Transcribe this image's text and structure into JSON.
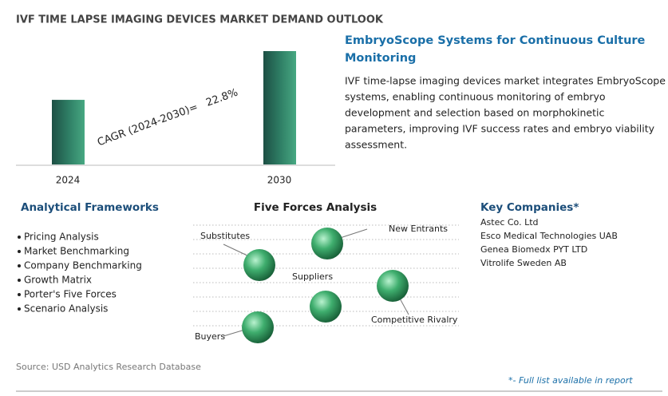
{
  "title": "IVF TIME LAPSE IMAGING DEVICES MARKET DEMAND OUTLOOK",
  "chart_data": {
    "type": "bar",
    "categories": [
      "2024",
      "2030"
    ],
    "values": [
      57,
      100
    ],
    "ylim": [
      0,
      100
    ],
    "color": "#2e7d64",
    "annotation": "CAGR (2024-2030)=",
    "annotation_value": "22.8%"
  },
  "highlight": {
    "title": [
      "EmbryoScope Systems for Continuous Culture",
      "Monitoring"
    ],
    "text": [
      "IVF time-lapse imaging devices market integrates EmbryoScope",
      "systems, enabling continuous monitoring of embryo",
      "development and selection based on morphokinetic",
      "parameters, improving IVF success rates and embryo viability",
      "assessment."
    ]
  },
  "frameworks": {
    "title": "Analytical Frameworks",
    "items": [
      "Pricing Analysis",
      "Market Benchmarking",
      "Company Benchmarking",
      "Growth Matrix",
      "Porter's Five Forces",
      "Scenario Analysis"
    ]
  },
  "five_forces": {
    "title": "Five Forces Analysis",
    "forces": [
      "Substitutes",
      "New Entrants",
      "Suppliers",
      "Competitive Rivalry",
      "Buyers"
    ]
  },
  "companies": {
    "title": "Key Companies*",
    "items": [
      "Astec Co. Ltd",
      "Esco Medical Technologies UAB",
      "Genea Biomedx PYT LTD",
      "Vitrolife Sweden AB"
    ]
  },
  "source": "Source: USD Analytics Research Database",
  "footnote": "*- Full list available in report"
}
